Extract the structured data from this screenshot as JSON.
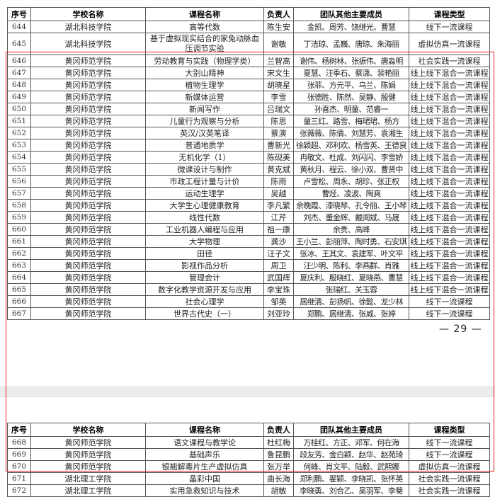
{
  "headers": [
    "序号",
    "学校名称",
    "课程名称",
    "负责人",
    "团队其他主要成员",
    "课程类型"
  ],
  "page_number": "— 29 —",
  "highlight_color": "#e02020",
  "page1_rows": [
    [
      "644",
      "湖北科技学院",
      "高等代数",
      "陈生安",
      "金凯、周芳、饶继光、曹慧",
      "线下一流课程"
    ],
    [
      "645",
      "湖北科技学院",
      "基于虚拟现实结合的家兔动脉血压调节实验",
      "谢敏",
      "丁洁琼、孟巍、唐琼、朱海丽",
      "虚拟仿真一流课程"
    ],
    [
      "646",
      "黄冈师范学院",
      "劳动教育与实践（物理学类）",
      "兰智高",
      "谢伟、杨树林、张振伟、唐淼明",
      "社会实践一流课程"
    ],
    [
      "647",
      "黄冈师范学院",
      "大别山精神",
      "宋文生",
      "夏慧、汪季石、蔡潇、裴艳丽",
      "线上线下混合一流课程"
    ],
    [
      "648",
      "黄冈师范学院",
      "植物生理学",
      "胡晓星",
      "张菲、方元平、乌兰、陈娟",
      "线上线下混合一流课程"
    ],
    [
      "649",
      "黄冈师范学院",
      "新媒体运营",
      "李雪",
      "张德胜、陈然、吴静、殷健",
      "线上线下混合一流课程"
    ],
    [
      "650",
      "黄冈师范学院",
      "新闻写作",
      "吕瑞文",
      "孙喜杰、明童、范睿一",
      "线上线下混合一流课程"
    ],
    [
      "651",
      "黄冈师范学院",
      "儿童行为观察与分析",
      "陈思",
      "童三红、路雪、梅珺珺、杨方",
      "线上线下混合一流课程"
    ],
    [
      "652",
      "黄冈师范学院",
      "英汉/汉英笔译",
      "蔡演",
      "张薇薇、陈倩、刘慧芳、袁湘生",
      "线上线下混合一流课程"
    ],
    [
      "653",
      "黄冈师范学院",
      "普通地质学",
      "曹新光",
      "徐颖超、邓利欢、杨雪英、王德良",
      "线上线下混合一流课程"
    ],
    [
      "654",
      "黄冈师范学院",
      "无机化学（1）",
      "陈砚美",
      "冉敬文、杜成、刘闪闪、李雪娇",
      "线上线下混合一流课程"
    ],
    [
      "655",
      "黄冈师范学院",
      "微课设计与制作",
      "黄克斌",
      "黄秋月、程云、徐小双、曹贤中",
      "线上线下混合一流课程"
    ],
    [
      "656",
      "黄冈师范学院",
      "市政工程计量与计价",
      "陈雨",
      "卢雪松、周永、胡珍、张正权",
      "线上线下混合一流课程"
    ],
    [
      "657",
      "黄冈师范学院",
      "运动生理学",
      "吴越",
      "曹烃、凌波、陶爽",
      "线上线下混合一流课程"
    ],
    [
      "658",
      "黄冈师范学院",
      "大学生心理健康教育",
      "李凡繁",
      "余晚霞、漆晓琴、孔令丽、王小琴",
      "线上线下混合一流课程"
    ],
    [
      "659",
      "黄冈师范学院",
      "线性代数",
      "江芹",
      "刘杰、董金辉、戴阆斌、马晟",
      "线上线下混合一流课程"
    ],
    [
      "660",
      "黄冈师范学院",
      "工业机器人编程与应用",
      "祖一康",
      "余贵、高峰",
      "线上线下混合一流课程"
    ],
    [
      "661",
      "黄冈师范学院",
      "大学物理",
      "龚沙",
      "王小兰、彭丽萍、陶时勇、石安琪",
      "线上线下混合一流课程"
    ],
    [
      "662",
      "黄冈师范学院",
      "田径",
      "汪子文",
      "张冰、王其文、袁建军、叶文平",
      "线上线下混合一流课程"
    ],
    [
      "663",
      "黄冈师范学院",
      "影视作品分析",
      "周卫",
      "汪少明、陈利、李燕群、肖雅",
      "线上线下混合一流课程"
    ],
    [
      "664",
      "黄冈师范学院",
      "管理会计",
      "武国辉",
      "夏庆利、殷晓红、夏晓燕、曹慧",
      "线上线下混合一流课程"
    ],
    [
      "665",
      "黄冈师范学院",
      "数字化教学资源开发与应用",
      "李宝珠",
      "张瑞红、关玉蓉",
      "线上线下混合一流课程"
    ],
    [
      "666",
      "黄冈师范学院",
      "社会心理学",
      "邹英",
      "居继清、彭扬帆、徐懿、龙少林",
      "线下一流课程"
    ],
    [
      "667",
      "黄冈师范学院",
      "世界古代史（一）",
      "刘亚玲",
      "郑鹏、居继清、张威、张婷",
      "线下一流课程"
    ]
  ],
  "page2_rows": [
    [
      "668",
      "黄冈师范学院",
      "语文课程与教学论",
      "杜红梅",
      "万桂红、方正、邓军、何在海",
      "线下一流课程"
    ],
    [
      "669",
      "黄冈师范学院",
      "基础声乐",
      "鲁昆鹏",
      "段友芳、金白颖、赵华、赵苑琦",
      "线下一流课程"
    ],
    [
      "670",
      "黄冈师范学院",
      "银翘解毒片生产虚拟仿真",
      "张万举",
      "何峰、肖文平、陆毅、武熙娜",
      "虚拟仿真一流课程"
    ],
    [
      "671",
      "湖北理工学院",
      "晶彩中国",
      "曲长海",
      "郑利鹏、翟颖、李晓凯、张怀英",
      "社会实践一流课程"
    ],
    [
      "672",
      "湖北理工学院",
      "实用急救知识与技术",
      "胡敏",
      "李晓勇、刘合乙、吴羽军、李菊",
      "社会实践一流课程"
    ]
  ]
}
